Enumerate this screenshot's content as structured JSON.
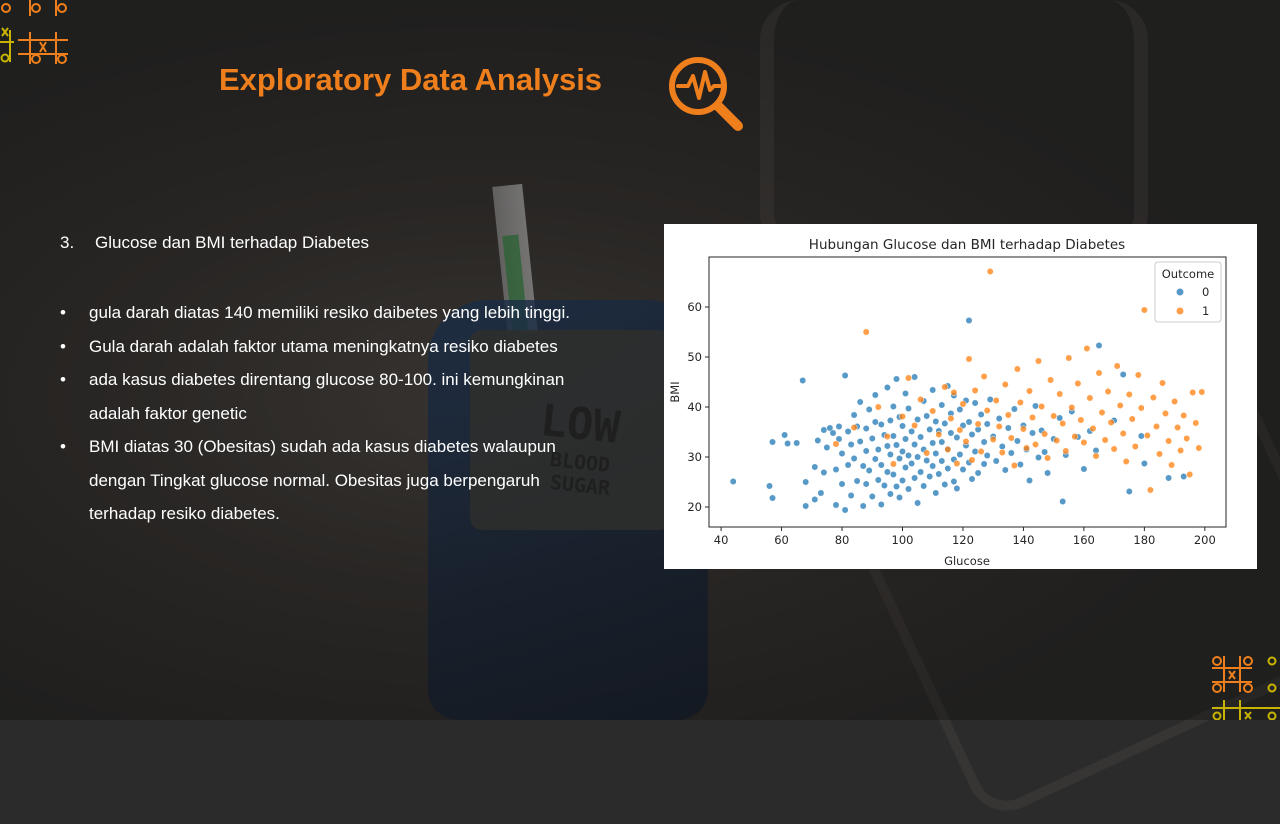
{
  "slide": {
    "title": "Exploratory Data Analysis",
    "heading_number": "3.",
    "heading_text": "Glucose dan BMI terhadap Diabetes",
    "bullets": [
      "gula darah diatas 140 memiliki resiko daibetes yang lebih tinggi.",
      "Gula darah adalah faktor utama meningkatnya resiko diabetes",
      "ada kasus diabetes direntang glucose 80-100. ini kemungkinan adalah faktor genetic",
      "BMI diatas 30 (Obesitas) sudah ada kasus diabetes walaupun dengan Tingkat glucose normal. Obesitas juga berpengaruh terhadap resiko diabetes."
    ],
    "device_display": {
      "line1": "LOW",
      "line2": "BLOOD",
      "line3": "SUGAR"
    }
  },
  "colors": {
    "accent": "#ee7f1c",
    "outcome0": "#1f77b4",
    "outcome1": "#ff7f0e"
  },
  "icons": {
    "title_icon": "magnifier-with-heartbeat-icon",
    "decor": "tic-tac-toe-pattern-icon"
  },
  "chart_data": {
    "type": "scatter",
    "title": "Hubungan Glucose dan BMI terhadap Diabetes",
    "xlabel": "Glucose",
    "ylabel": "BMI",
    "xlim": [
      36,
      207
    ],
    "ylim": [
      16,
      70
    ],
    "xticks": [
      40,
      60,
      80,
      100,
      120,
      140,
      160,
      180,
      200
    ],
    "yticks": [
      20,
      30,
      40,
      50,
      60
    ],
    "grid": false,
    "legend": {
      "title": "Outcome",
      "position": "top-right"
    },
    "series": [
      {
        "name": "0",
        "points": [
          [
            44,
            25.1
          ],
          [
            56,
            24.2
          ],
          [
            57,
            33
          ],
          [
            57,
            21.8
          ],
          [
            61,
            34.4
          ],
          [
            62,
            32.7
          ],
          [
            65,
            32.8
          ],
          [
            67,
            45.3
          ],
          [
            68,
            25
          ],
          [
            68,
            20.2
          ],
          [
            71,
            28
          ],
          [
            71,
            21.5
          ],
          [
            72,
            33.3
          ],
          [
            73,
            22.8
          ],
          [
            74,
            35.4
          ],
          [
            74,
            26.9
          ],
          [
            75,
            31.9
          ],
          [
            76,
            35.8
          ],
          [
            77,
            34.8
          ],
          [
            78,
            27.5
          ],
          [
            78,
            20.4
          ],
          [
            79,
            36.1
          ],
          [
            79,
            33.6
          ],
          [
            80,
            30.7
          ],
          [
            80,
            24.6
          ],
          [
            81,
            46.3
          ],
          [
            81,
            19.4
          ],
          [
            82,
            35.1
          ],
          [
            82,
            28.4
          ],
          [
            83,
            32.5
          ],
          [
            83,
            22.3
          ],
          [
            84,
            38.4
          ],
          [
            84,
            29.7
          ],
          [
            85,
            36.1
          ],
          [
            85,
            25.2
          ],
          [
            86,
            33.1
          ],
          [
            86,
            41
          ],
          [
            87,
            28.2
          ],
          [
            87,
            20.2
          ],
          [
            88,
            35.7
          ],
          [
            88,
            31.2
          ],
          [
            88,
            24.6
          ],
          [
            89,
            39.5
          ],
          [
            89,
            27.3
          ],
          [
            90,
            33.7
          ],
          [
            90,
            22.1
          ],
          [
            91,
            37
          ],
          [
            91,
            29.6
          ],
          [
            91,
            42.4
          ],
          [
            92,
            31.5
          ],
          [
            92,
            25.4
          ],
          [
            93,
            36.5
          ],
          [
            93,
            28.4
          ],
          [
            93,
            20.5
          ],
          [
            94,
            34.4
          ],
          [
            94,
            24.3
          ],
          [
            95,
            43.9
          ],
          [
            95,
            32.2
          ],
          [
            95,
            27
          ],
          [
            96,
            37.3
          ],
          [
            96,
            30.5
          ],
          [
            96,
            22.6
          ],
          [
            97,
            40.1
          ],
          [
            97,
            34.2
          ],
          [
            97,
            26.5
          ],
          [
            98,
            45.6
          ],
          [
            98,
            32.4
          ],
          [
            98,
            24.1
          ],
          [
            99,
            38
          ],
          [
            99,
            29.7
          ],
          [
            99,
            21.9
          ],
          [
            100,
            36.2
          ],
          [
            100,
            31.1
          ],
          [
            100,
            25.3
          ],
          [
            101,
            42.7
          ],
          [
            101,
            33.6
          ],
          [
            101,
            27.9
          ],
          [
            102,
            39.7
          ],
          [
            102,
            30.3
          ],
          [
            102,
            23.6
          ],
          [
            103,
            35.1
          ],
          [
            103,
            28.7
          ],
          [
            104,
            46
          ],
          [
            104,
            32.5
          ],
          [
            104,
            25.8
          ],
          [
            105,
            37.5
          ],
          [
            105,
            30
          ],
          [
            105,
            20.8
          ],
          [
            106,
            34
          ],
          [
            106,
            27
          ],
          [
            107,
            41.2
          ],
          [
            107,
            31.5
          ],
          [
            107,
            24.2
          ],
          [
            108,
            38.2
          ],
          [
            108,
            29.3
          ],
          [
            109,
            35.5
          ],
          [
            109,
            26.1
          ],
          [
            110,
            43.4
          ],
          [
            110,
            32.8
          ],
          [
            110,
            28.2
          ],
          [
            111,
            37.1
          ],
          [
            111,
            30.7
          ],
          [
            111,
            22.8
          ],
          [
            112,
            35.2
          ],
          [
            112,
            26.6
          ],
          [
            113,
            40.4
          ],
          [
            113,
            33
          ],
          [
            113,
            29.2
          ],
          [
            114,
            36.7
          ],
          [
            114,
            24.5
          ],
          [
            115,
            44.2
          ],
          [
            115,
            31.6
          ],
          [
            115,
            27.7
          ],
          [
            116,
            38.7
          ],
          [
            116,
            34.8
          ],
          [
            117,
            42.3
          ],
          [
            117,
            29.5
          ],
          [
            117,
            25.1
          ],
          [
            118,
            33.9
          ],
          [
            118,
            23.7
          ],
          [
            119,
            39.5
          ],
          [
            119,
            30.5
          ],
          [
            120,
            36.3
          ],
          [
            120,
            27.5
          ],
          [
            121,
            41.3
          ],
          [
            121,
            32.3
          ],
          [
            122,
            37
          ],
          [
            122,
            28.9
          ],
          [
            122,
            57.3
          ],
          [
            123,
            34.5
          ],
          [
            123,
            25.6
          ],
          [
            124,
            40.8
          ],
          [
            124,
            31.1
          ],
          [
            125,
            35.5
          ],
          [
            125,
            26.8
          ],
          [
            126,
            38.5
          ],
          [
            127,
            33
          ],
          [
            127,
            28.6
          ],
          [
            128,
            36.6
          ],
          [
            128,
            30.3
          ],
          [
            129,
            41.5
          ],
          [
            130,
            34.1
          ],
          [
            131,
            29.2
          ],
          [
            132,
            37.7
          ],
          [
            133,
            32.1
          ],
          [
            134,
            27.4
          ],
          [
            135,
            35.8
          ],
          [
            136,
            30.8
          ],
          [
            137,
            39.6
          ],
          [
            138,
            33.2
          ],
          [
            139,
            28.5
          ],
          [
            140,
            36.3
          ],
          [
            141,
            31.5
          ],
          [
            142,
            25.3
          ],
          [
            143,
            34.8
          ],
          [
            144,
            40.2
          ],
          [
            145,
            29.9
          ],
          [
            146,
            35.3
          ],
          [
            147,
            31
          ],
          [
            148,
            26.8
          ],
          [
            150,
            33.6
          ],
          [
            152,
            37.8
          ],
          [
            153,
            21.1
          ],
          [
            154,
            30.4
          ],
          [
            156,
            39.1
          ],
          [
            158,
            34
          ],
          [
            160,
            27.6
          ],
          [
            162,
            35.2
          ],
          [
            164,
            31.3
          ],
          [
            165,
            52.3
          ],
          [
            170,
            37.3
          ],
          [
            173,
            46.5
          ],
          [
            175,
            23.1
          ],
          [
            179,
            34.2
          ],
          [
            180,
            28.7
          ],
          [
            188,
            25.8
          ],
          [
            193,
            26.1
          ]
        ]
      },
      {
        "name": "1",
        "points": [
          [
            78,
            32.6
          ],
          [
            84,
            35.9
          ],
          [
            88,
            55
          ],
          [
            92,
            40
          ],
          [
            95,
            34.1
          ],
          [
            97,
            28.6
          ],
          [
            100,
            38.1
          ],
          [
            102,
            45.8
          ],
          [
            104,
            36.3
          ],
          [
            106,
            41.5
          ],
          [
            108,
            30.8
          ],
          [
            110,
            39.2
          ],
          [
            112,
            34.5
          ],
          [
            114,
            44
          ],
          [
            115,
            31.5
          ],
          [
            116,
            37.7
          ],
          [
            117,
            42.9
          ],
          [
            118,
            28.7
          ],
          [
            119,
            35.4
          ],
          [
            120,
            40.6
          ],
          [
            121,
            33.1
          ],
          [
            122,
            49.6
          ],
          [
            123,
            29.4
          ],
          [
            124,
            43.3
          ],
          [
            125,
            36.6
          ],
          [
            126,
            31.1
          ],
          [
            127,
            46.1
          ],
          [
            128,
            39.3
          ],
          [
            129,
            67.1
          ],
          [
            130,
            33.5
          ],
          [
            131,
            41.3
          ],
          [
            132,
            36.1
          ],
          [
            133,
            30.9
          ],
          [
            134,
            44.5
          ],
          [
            135,
            38.4
          ],
          [
            136,
            33.8
          ],
          [
            137,
            28.3
          ],
          [
            138,
            47.6
          ],
          [
            139,
            40.9
          ],
          [
            140,
            35.6
          ],
          [
            141,
            31.8
          ],
          [
            142,
            43.2
          ],
          [
            143,
            37.9
          ],
          [
            144,
            32.5
          ],
          [
            145,
            49.2
          ],
          [
            146,
            40.1
          ],
          [
            147,
            34.6
          ],
          [
            148,
            29.8
          ],
          [
            149,
            45.4
          ],
          [
            150,
            38.2
          ],
          [
            151,
            33.3
          ],
          [
            152,
            42.6
          ],
          [
            153,
            36.7
          ],
          [
            154,
            31.2
          ],
          [
            155,
            49.8
          ],
          [
            156,
            39.9
          ],
          [
            157,
            34.1
          ],
          [
            158,
            44.7
          ],
          [
            159,
            37.4
          ],
          [
            160,
            32.9
          ],
          [
            161,
            51.7
          ],
          [
            162,
            41.8
          ],
          [
            163,
            35.7
          ],
          [
            164,
            30.2
          ],
          [
            165,
            46.8
          ],
          [
            166,
            38.9
          ],
          [
            167,
            33.4
          ],
          [
            168,
            43.1
          ],
          [
            169,
            36.9
          ],
          [
            170,
            31.6
          ],
          [
            171,
            48.2
          ],
          [
            172,
            40.3
          ],
          [
            173,
            34.7
          ],
          [
            174,
            29.1
          ],
          [
            175,
            42.5
          ],
          [
            176,
            37.6
          ],
          [
            177,
            32.1
          ],
          [
            178,
            46.4
          ],
          [
            179,
            39.8
          ],
          [
            180,
            59.4
          ],
          [
            181,
            34.3
          ],
          [
            182,
            23.4
          ],
          [
            183,
            41.9
          ],
          [
            184,
            36.1
          ],
          [
            185,
            30.6
          ],
          [
            186,
            44.8
          ],
          [
            187,
            38.7
          ],
          [
            188,
            33.2
          ],
          [
            189,
            28.4
          ],
          [
            190,
            41.1
          ],
          [
            191,
            35.9
          ],
          [
            192,
            31.3
          ],
          [
            193,
            38.3
          ],
          [
            194,
            33.7
          ],
          [
            195,
            26.5
          ],
          [
            196,
            42.9
          ],
          [
            197,
            36.8
          ],
          [
            198,
            31.8
          ],
          [
            199,
            43
          ]
        ]
      }
    ]
  }
}
